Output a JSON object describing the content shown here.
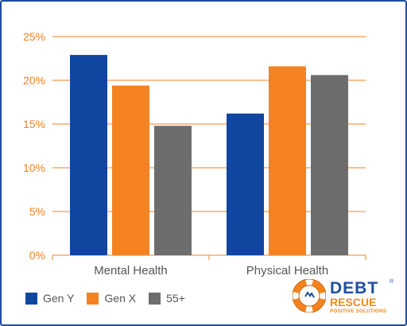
{
  "chart_data": {
    "type": "bar",
    "categories": [
      "Mental Health",
      "Physical Health"
    ],
    "series": [
      {
        "name": "Gen Y",
        "color": "#1046a0",
        "values": [
          22.9,
          16.2
        ]
      },
      {
        "name": "Gen X",
        "color": "#f58220",
        "values": [
          19.4,
          21.6
        ]
      },
      {
        "name": "55+",
        "color": "#6d6d6d",
        "values": [
          14.8,
          20.6
        ]
      }
    ],
    "ylim": [
      0,
      25
    ],
    "yticks": [
      0,
      5,
      10,
      15,
      20,
      25
    ],
    "ytick_labels": [
      "0%",
      "5%",
      "10%",
      "15%",
      "20%",
      "25%"
    ],
    "grid": true,
    "grid_color": "#f58220",
    "legend_position": "bottom-left",
    "title": "",
    "xlabel": "",
    "ylabel": ""
  },
  "logo": {
    "main": "DEBT",
    "reg": "®",
    "sub": "RESCUE",
    "tagline": "POSITIVE SOLUTIONS"
  }
}
